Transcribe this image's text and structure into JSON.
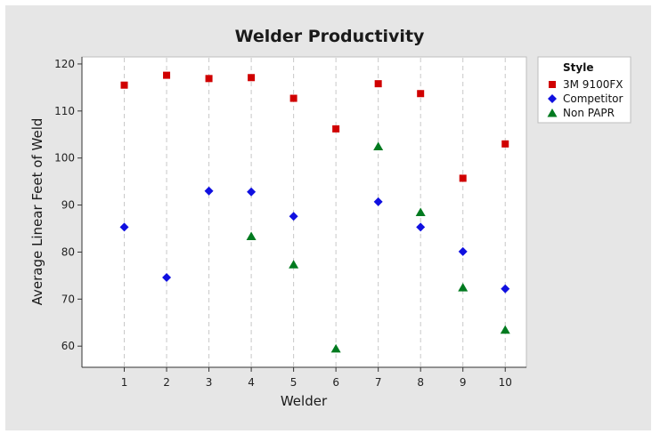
{
  "chart_data": {
    "type": "scatter",
    "title": "Welder Productivity",
    "xlabel": "Welder",
    "ylabel": "Average Linear Feet of Weld",
    "categories": [
      1,
      2,
      3,
      4,
      5,
      6,
      7,
      8,
      9,
      10
    ],
    "xlim": [
      0,
      10.5
    ],
    "ylim": [
      55.5,
      121.5
    ],
    "yticks": [
      60,
      70,
      80,
      90,
      100,
      110,
      120
    ],
    "grid": "vertical dashed",
    "legend": {
      "title": "Style",
      "placement": "right"
    },
    "series": [
      {
        "name": "3M 9100FX",
        "marker": "square",
        "color": "#d00000",
        "x": [
          1,
          2,
          3,
          4,
          5,
          6,
          7,
          8,
          9,
          10
        ],
        "values": [
          115.5,
          117.6,
          116.9,
          117.1,
          112.7,
          106.2,
          115.8,
          113.7,
          95.7,
          103.0
        ]
      },
      {
        "name": "Competitor",
        "marker": "diamond",
        "color": "#1010e0",
        "x": [
          1,
          2,
          3,
          4,
          5,
          7,
          8,
          9,
          10
        ],
        "values": [
          85.3,
          74.6,
          93.0,
          92.8,
          87.6,
          90.7,
          85.3,
          80.1,
          72.2
        ]
      },
      {
        "name": "Non PAPR",
        "marker": "triangle",
        "color": "#007a1f",
        "x": [
          4,
          5,
          6,
          7,
          8,
          9,
          10
        ],
        "values": [
          83.4,
          77.4,
          59.5,
          102.5,
          88.5,
          72.5,
          63.5
        ]
      }
    ]
  }
}
